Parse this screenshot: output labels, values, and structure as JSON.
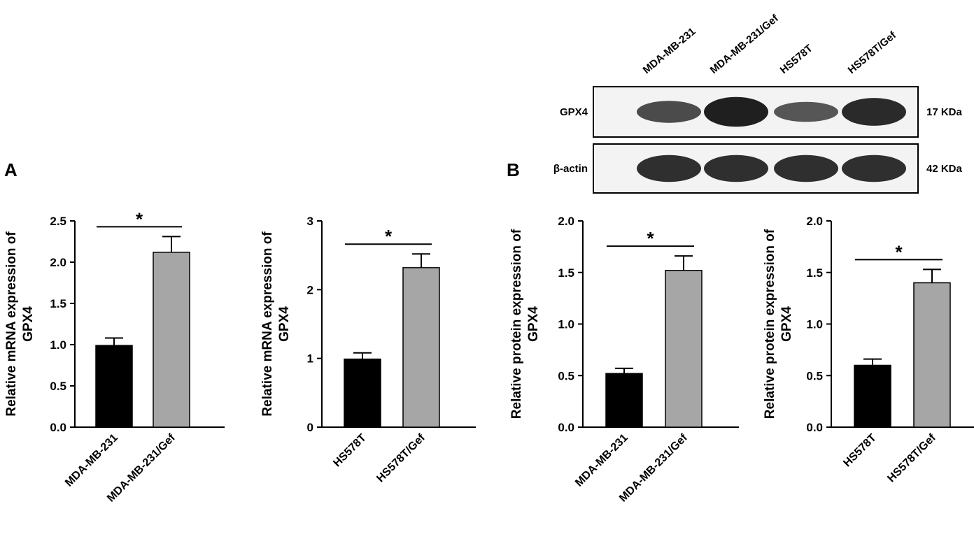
{
  "panels": {
    "A": "A",
    "B": "B"
  },
  "western_blot": {
    "lanes": [
      "MDA-MB-231",
      "MDA-MB-231/Gef",
      "HS578T",
      "HS578T/Gef"
    ],
    "rows": [
      {
        "name": "GPX4",
        "kda": "17 KDa",
        "band_intensity": [
          0.55,
          0.95,
          0.45,
          0.85
        ]
      },
      {
        "name": "β-actin",
        "kda": "42 KDa",
        "band_intensity": [
          0.8,
          0.8,
          0.8,
          0.8
        ]
      }
    ]
  },
  "colors": {
    "control_bar": "#000000",
    "gef_bar": "#a6a6a6",
    "axis": "#000000"
  },
  "chart_data": [
    {
      "type": "bar",
      "panel": "A",
      "categories": [
        "MDA-MB-231",
        "MDA-MB-231/Gef"
      ],
      "values": [
        0.99,
        2.12
      ],
      "errors": [
        0.09,
        0.19
      ],
      "ylabel_line1": "Relative mRNA expression of",
      "ylabel_line2": "GPX4",
      "ylim": [
        0,
        2.5
      ],
      "yticks": [
        "0.0",
        "0.5",
        "1.0",
        "1.5",
        "2.0",
        "2.5"
      ],
      "significance": "*"
    },
    {
      "type": "bar",
      "panel": "A",
      "categories": [
        "HS578T",
        "HS578T/Gef"
      ],
      "values": [
        0.99,
        2.32
      ],
      "errors": [
        0.09,
        0.2
      ],
      "ylabel_line1": "Relative mRNA expression of",
      "ylabel_line2": "GPX4",
      "ylim": [
        0,
        3
      ],
      "yticks": [
        "0",
        "1",
        "2",
        "3"
      ],
      "significance": "*"
    },
    {
      "type": "bar",
      "panel": "B",
      "categories": [
        "MDA-MB-231",
        "MDA-MB-231/Gef"
      ],
      "values": [
        0.52,
        1.52
      ],
      "errors": [
        0.05,
        0.14
      ],
      "ylabel_line1": "Relative protein expression of",
      "ylabel_line2": "GPX4",
      "ylim": [
        0,
        2.0
      ],
      "yticks": [
        "0.0",
        "0.5",
        "1.0",
        "1.5",
        "2.0"
      ],
      "significance": "*"
    },
    {
      "type": "bar",
      "panel": "B",
      "categories": [
        "HS578T",
        "HS578T/Gef"
      ],
      "values": [
        0.6,
        1.4
      ],
      "errors": [
        0.06,
        0.13
      ],
      "ylabel_line1": "Relative protein expression of",
      "ylabel_line2": "GPX4",
      "ylim": [
        0,
        2.0
      ],
      "yticks": [
        "0.0",
        "0.5",
        "1.0",
        "1.5",
        "2.0"
      ],
      "significance": "*"
    }
  ]
}
